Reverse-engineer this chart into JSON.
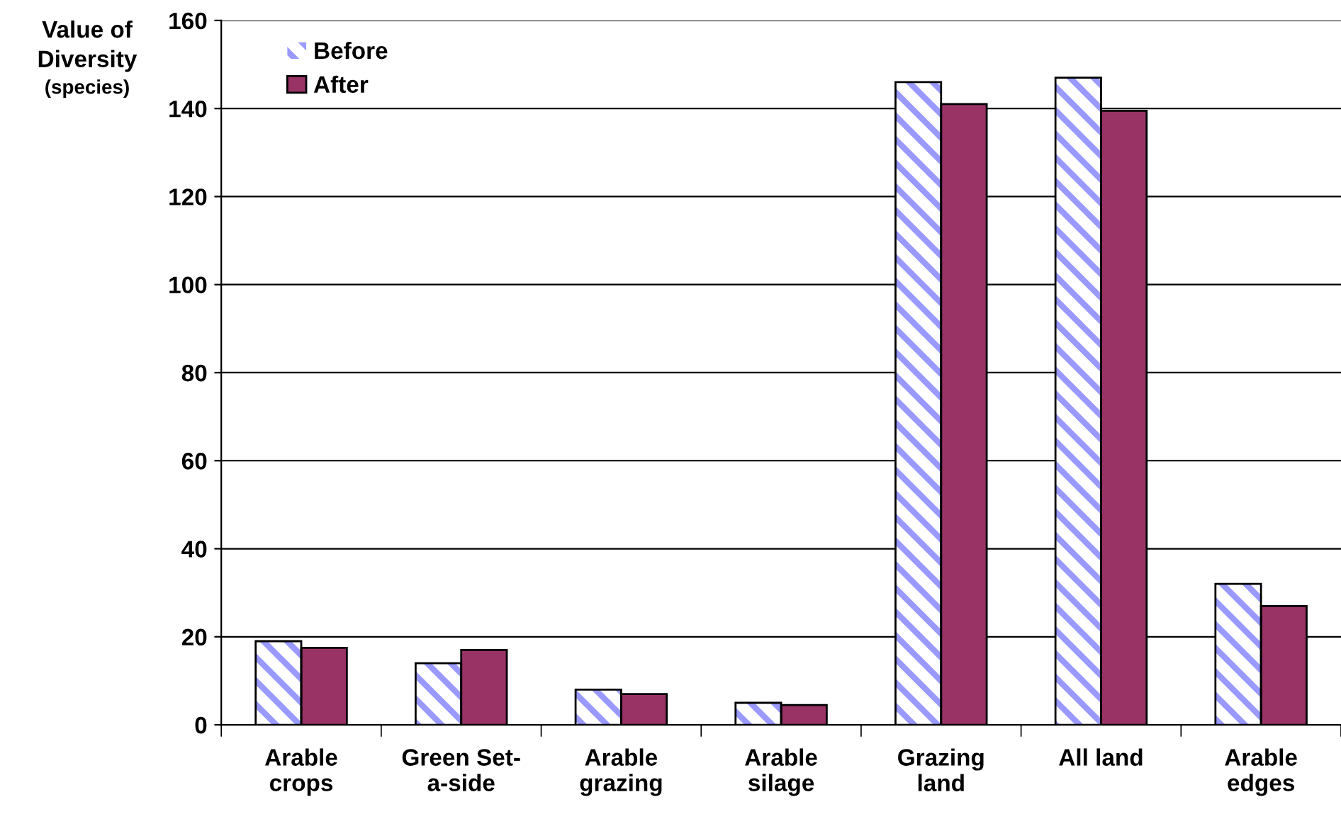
{
  "chart_data": {
    "type": "bar",
    "ylabel": "Value of\nDiversity\n(species)",
    "categories": [
      "Arable\ncrops",
      "Green Set-\na-side",
      "Arable\ngrazing",
      "Arable\nsilage",
      "Grazing\nland",
      "All land",
      "Arable\nedges"
    ],
    "series": [
      {
        "name": "Before",
        "color": "#9999ff",
        "values": [
          19,
          14,
          8,
          5,
          146,
          147,
          32
        ]
      },
      {
        "name": "After",
        "color": "#993366",
        "values": [
          17.5,
          17,
          7,
          4.5,
          141,
          139.5,
          27
        ]
      }
    ],
    "ylim": [
      0,
      160
    ],
    "yticks": [
      0,
      20,
      40,
      60,
      80,
      100,
      120,
      140,
      160
    ],
    "grid": "y",
    "legend": "top left"
  }
}
